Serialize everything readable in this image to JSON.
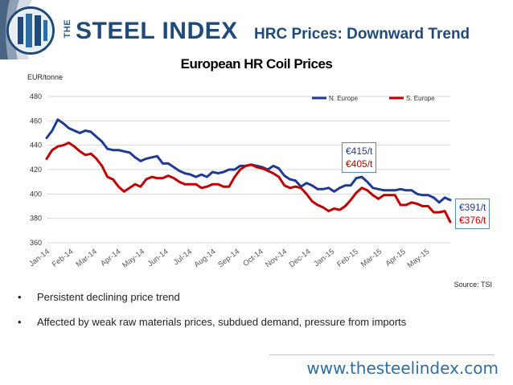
{
  "header": {
    "logo_prefix": "THE",
    "logo_text": "STEEL INDEX",
    "slide_title": "HRC Prices: Downward Trend"
  },
  "chart_data": {
    "type": "line",
    "title": "European HR Coil Prices",
    "ylabel": "EUR/tonne",
    "ylim": [
      360,
      480
    ],
    "yticks": [
      360,
      380,
      400,
      420,
      440,
      460,
      480
    ],
    "xtick_labels": [
      "Jan-14",
      "Feb-14",
      "Mar-14",
      "Apr-14",
      "May-14",
      "Jun-14",
      "Jul-14",
      "Aug-14",
      "Sep-14",
      "Oct-14",
      "Nov-14",
      "Dec-14",
      "Jan-15",
      "Feb-15",
      "Mar-15",
      "Apr-15",
      "May-15"
    ],
    "grid": true,
    "legend": "top-right",
    "series": [
      {
        "name": "N. Europe",
        "color": "#1f3a93",
        "values": [
          446,
          452,
          461,
          458,
          454,
          452,
          450,
          452,
          451,
          447,
          443,
          437,
          436,
          436,
          435,
          434,
          430,
          427,
          429,
          430,
          431,
          425,
          425,
          422,
          419,
          417,
          416,
          414,
          416,
          414,
          418,
          417,
          418,
          420,
          420,
          423,
          423,
          424,
          423,
          422,
          420,
          423,
          421,
          415,
          412,
          411,
          406,
          409,
          407,
          404,
          404,
          405,
          402,
          405,
          407,
          407,
          413,
          414,
          410,
          405,
          404,
          403,
          403,
          403,
          404,
          403,
          403,
          400,
          399,
          399,
          397,
          393,
          397,
          395
        ]
      },
      {
        "name": "S. Europe",
        "color": "#c00000",
        "values": [
          429,
          436,
          439,
          440,
          442,
          439,
          435,
          432,
          433,
          429,
          423,
          414,
          412,
          406,
          402,
          405,
          408,
          406,
          412,
          414,
          413,
          413,
          415,
          413,
          410,
          408,
          408,
          408,
          405,
          406,
          408,
          408,
          406,
          406,
          414,
          420,
          423,
          424,
          422,
          421,
          419,
          417,
          414,
          407,
          405,
          406,
          405,
          400,
          394,
          391,
          389,
          386,
          388,
          387,
          390,
          395,
          401,
          405,
          403,
          399,
          396,
          399,
          399,
          399,
          391,
          391,
          393,
          392,
          390,
          390,
          385,
          385,
          386,
          377
        ]
      }
    ],
    "annotations": [
      {
        "north": "€415/t",
        "south": "€405/t"
      },
      {
        "north": "€391/t",
        "south": "€376/t"
      }
    ],
    "source": "Source: TSI"
  },
  "bullets": [
    "Persistent declining price trend",
    "Affected by weak raw materials prices, subdued demand, pressure from imports"
  ],
  "bullet_glyph": "•",
  "footer": {
    "website": "www.thesteelindex.com"
  }
}
